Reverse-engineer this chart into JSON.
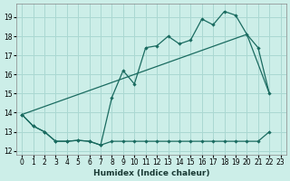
{
  "xlabel": "Humidex (Indice chaleur)",
  "bg_color": "#cceee8",
  "grid_color": "#aad8d2",
  "line_color": "#1a6b60",
  "xlim": [
    -0.5,
    23.5
  ],
  "ylim": [
    11.8,
    19.7
  ],
  "yticks": [
    12,
    13,
    14,
    15,
    16,
    17,
    18,
    19
  ],
  "xticks": [
    0,
    1,
    2,
    3,
    4,
    5,
    6,
    7,
    8,
    9,
    10,
    11,
    12,
    13,
    14,
    15,
    16,
    17,
    18,
    19,
    20,
    21,
    22,
    23
  ],
  "series1_x": [
    0,
    1,
    2,
    3,
    4,
    5,
    6,
    7,
    8,
    9,
    10,
    11,
    12,
    13,
    14,
    15,
    16,
    17,
    18,
    19,
    20,
    21,
    22
  ],
  "series1_y": [
    13.9,
    13.3,
    13.0,
    12.5,
    12.5,
    12.55,
    12.5,
    12.3,
    14.8,
    16.2,
    15.5,
    17.4,
    17.5,
    18.0,
    17.6,
    17.8,
    18.9,
    18.6,
    19.3,
    19.1,
    18.1,
    17.4,
    15.0
  ],
  "series2_x": [
    0,
    1,
    2,
    3,
    4,
    5,
    6,
    7,
    8,
    9,
    10,
    11,
    12,
    13,
    14,
    15,
    16,
    17,
    18,
    19,
    20,
    21,
    22
  ],
  "series2_y": [
    13.9,
    13.3,
    13.0,
    12.5,
    12.5,
    12.55,
    12.5,
    12.3,
    12.5,
    12.5,
    12.5,
    12.5,
    12.5,
    12.5,
    12.5,
    12.5,
    12.5,
    12.5,
    12.5,
    12.5,
    12.5,
    12.5,
    13.0
  ],
  "series3_x": [
    0,
    20,
    22
  ],
  "series3_y": [
    13.9,
    18.1,
    15.0
  ]
}
